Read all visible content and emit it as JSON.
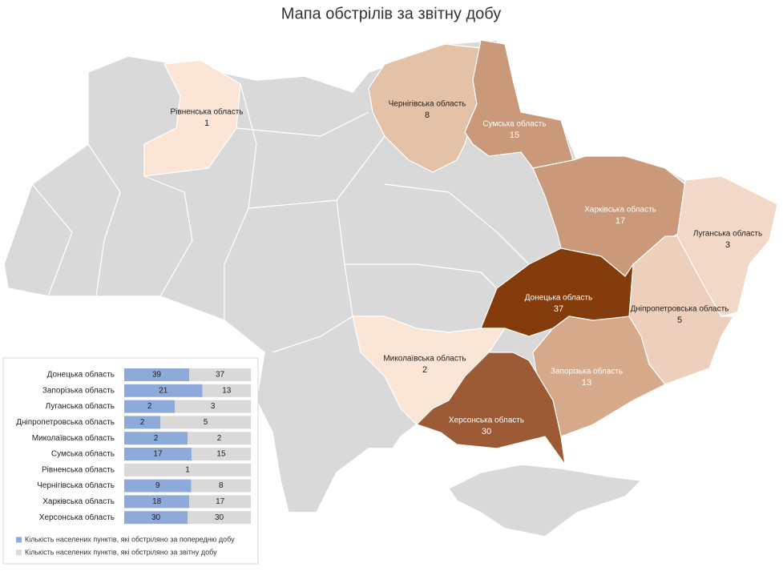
{
  "title": "Мапа обстрілів за звітну добу",
  "map": {
    "regions": [
      {
        "name": "Рівненська область",
        "value": 1,
        "color": "#fbe5d6"
      },
      {
        "name": "Чернігівська область",
        "value": 8,
        "color": "#e4c2a8"
      },
      {
        "name": "Сумська область",
        "value": 15,
        "color": "#c9997a"
      },
      {
        "name": "Харківська область",
        "value": 17,
        "color": "#c9997a"
      },
      {
        "name": "Луганська область",
        "value": 3,
        "color": "#f2d8c6"
      },
      {
        "name": "Дніпропетровська область",
        "value": 5,
        "color": "#ecd0bc"
      },
      {
        "name": "Донецька область",
        "value": 37,
        "color": "#843c0c"
      },
      {
        "name": "Миколаївська область",
        "value": 2,
        "color": "#fbe5d6"
      },
      {
        "name": "Запорізька область",
        "value": 13,
        "color": "#d5a98a"
      },
      {
        "name": "Херсонська область",
        "value": 30,
        "color": "#9c5a35"
      }
    ]
  },
  "chart_data": {
    "type": "bar",
    "stacking": "percent",
    "categories": [
      "Донецька область",
      "Запорізька область",
      "Луганська область",
      "Дніпропетровська область",
      "Миколаївська область",
      "Сумська область",
      "Рівненська область",
      "Чернігівська область",
      "Харківська область",
      "Херсонська область"
    ],
    "series": [
      {
        "name": "Кількість населених пунктів, які обстріляно за попередню добу",
        "color": "#8eaadb",
        "values": [
          39,
          21,
          2,
          2,
          2,
          17,
          null,
          9,
          18,
          30
        ]
      },
      {
        "name": "Кількість населених пунктів, які обстріляно за звітну добу",
        "color": "#d9d9d9",
        "values": [
          37,
          13,
          3,
          5,
          2,
          15,
          1,
          8,
          17,
          30
        ]
      }
    ]
  }
}
